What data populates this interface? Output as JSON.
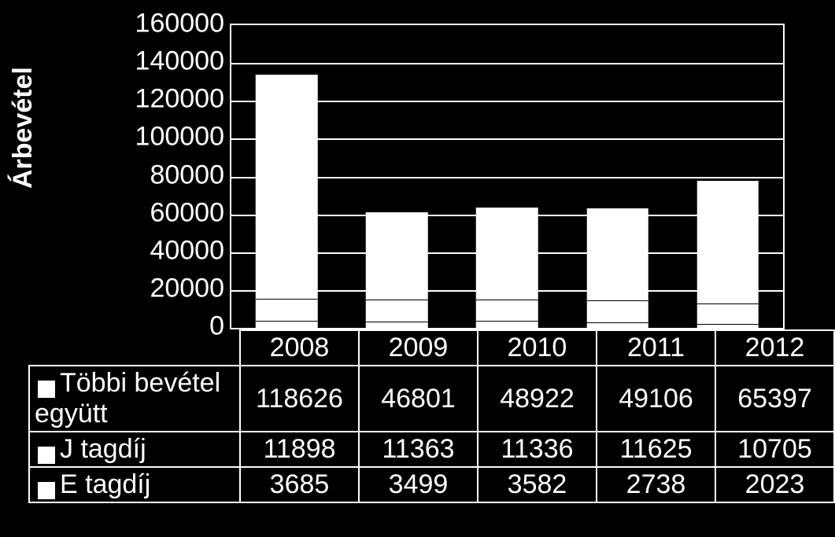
{
  "chart": {
    "type": "stacked-bar",
    "ylabel": "Árbevétel",
    "background_color": "#000000",
    "text_color": "#ffffff",
    "bar_color": "#ffffff",
    "grid_color": "#ffffff",
    "ylabel_fontsize": 34,
    "tick_fontsize": 34,
    "ylim": [
      0,
      160000
    ],
    "ytick_step": 20000,
    "yticks": [
      "160000",
      "140000",
      "120000",
      "100000",
      "80000",
      "60000",
      "40000",
      "20000",
      "0"
    ],
    "categories": [
      "2008",
      "2009",
      "2010",
      "2011",
      "2012"
    ],
    "series": [
      {
        "name": "Többi bevétel együtt",
        "values": [
          118626,
          46801,
          48922,
          49106,
          65397
        ]
      },
      {
        "name": "J tagdíj",
        "values": [
          11898,
          11363,
          11336,
          11625,
          10705
        ]
      },
      {
        "name": "E tagdíj",
        "values": [
          3685,
          3499,
          3582,
          2738,
          2023
        ]
      }
    ],
    "bar_width": 0.56
  }
}
